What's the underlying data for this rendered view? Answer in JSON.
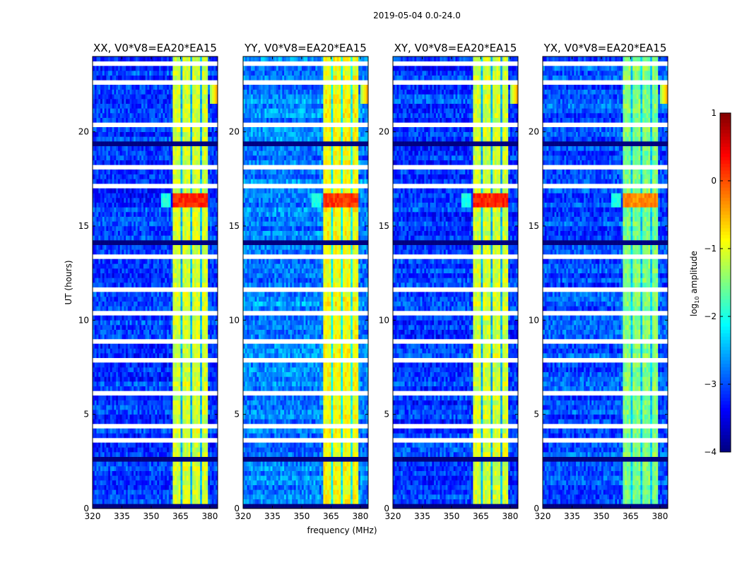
{
  "chart_data": {
    "type": "heatmap",
    "title": "2019-05-04 0.0-24.0",
    "xlabel": "frequency (MHz)",
    "ylabel": "UT (hours)",
    "xlim": [
      320,
      384
    ],
    "ylim": [
      0,
      24
    ],
    "x_ticks": [
      "320",
      "335",
      "350",
      "365",
      "380"
    ],
    "x_tick_values": [
      320,
      335,
      350,
      365,
      380
    ],
    "y_ticks": [
      "0",
      "5",
      "10",
      "15",
      "20"
    ],
    "y_tick_values": [
      0,
      5,
      10,
      15,
      20
    ],
    "freq_resolution_mhz": 1,
    "time_resolution_hours": 0.25,
    "bright_band_mhz": [
      360.5,
      379.5
    ],
    "band_notches_mhz": [
      365.5,
      370.5,
      375.5
    ],
    "event_time_hours": [
      16.0,
      16.8
    ],
    "event_spread_mhz": [
      355,
      360.5
    ],
    "flagged_time_ranges_hours": [
      [
        23.55,
        23.75
      ],
      [
        22.5,
        22.7
      ],
      [
        20.3,
        20.6
      ],
      [
        18.1,
        18.25
      ],
      [
        17.1,
        17.2
      ],
      [
        13.2,
        13.6
      ],
      [
        11.6,
        11.7
      ],
      [
        10.3,
        10.4
      ],
      [
        8.7,
        8.9
      ],
      [
        7.65,
        7.9
      ],
      [
        6.1,
        6.2
      ],
      [
        5.0,
        5.1
      ],
      [
        4.25,
        4.4
      ],
      [
        3.6,
        3.7
      ],
      [
        2.0,
        2.1
      ],
      [
        1.15,
        1.25
      ],
      [
        0.5,
        0.55
      ]
    ],
    "dark_time_ranges_hours": [
      [
        23.0,
        23.05
      ],
      [
        19.3,
        19.4
      ],
      [
        14.0,
        14.25
      ],
      [
        13.9,
        13.95
      ],
      [
        12.0,
        12.05
      ],
      [
        4.5,
        4.55
      ],
      [
        2.6,
        2.65
      ],
      [
        0.1,
        0.2
      ]
    ],
    "series": [
      {
        "name": "XX, V0*V8=EA20*EA15",
        "background": -3.1,
        "band_level": -1.1,
        "event_level": 0.2
      },
      {
        "name": "YY, V0*V8=EA20*EA15",
        "background": -2.75,
        "band_level": -0.9,
        "event_level": 0.1
      },
      {
        "name": "XY, V0*V8=EA20*EA15",
        "background": -3.1,
        "band_level": -1.1,
        "event_level": 0.2
      },
      {
        "name": "YX, V0*V8=EA20*EA15",
        "background": -3.0,
        "band_level": -1.5,
        "event_level": -0.3
      }
    ],
    "colorbar": {
      "label_prefix": "log",
      "label_sub": "10",
      "label_suffix": " amplitude",
      "range": [
        -4,
        1
      ],
      "ticks": [
        "1",
        "0",
        "−1",
        "−2",
        "−3",
        "−4"
      ],
      "tick_values": [
        1,
        0,
        -1,
        -2,
        -3,
        -4
      ],
      "colormap": "jet"
    }
  }
}
